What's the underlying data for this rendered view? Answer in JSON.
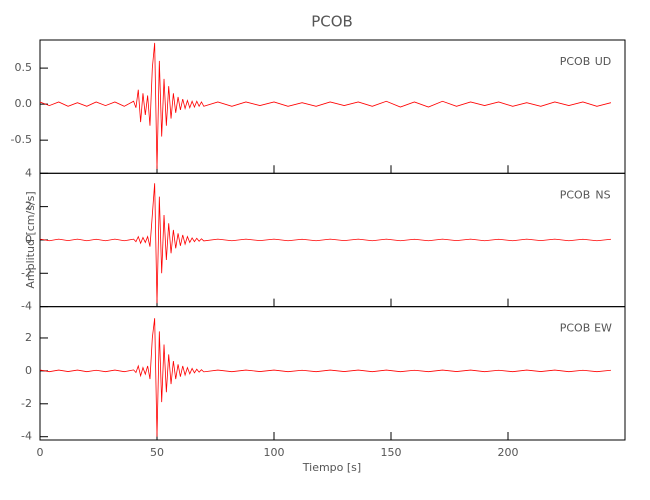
{
  "chart_data": {
    "type": "line",
    "title": "PCOB",
    "xlabel": "Tiempo [s]",
    "ylabel": "Amplitud [cm/s/s]",
    "color": "#ff0000",
    "xlim": [
      0,
      250
    ],
    "xticks": [
      0,
      50,
      100,
      150,
      200
    ],
    "x": [
      0,
      4,
      8,
      12,
      16,
      20,
      24,
      28,
      32,
      36,
      40,
      41,
      42,
      43,
      44,
      45,
      46,
      47,
      48,
      49,
      50,
      51,
      52,
      53,
      54,
      55,
      56,
      57,
      58,
      59,
      60,
      61,
      62,
      63,
      64,
      65,
      66,
      67,
      68,
      69,
      70,
      76,
      82,
      88,
      94,
      100,
      106,
      112,
      118,
      124,
      130,
      136,
      142,
      148,
      154,
      160,
      166,
      172,
      178,
      184,
      190,
      196,
      202,
      208,
      214,
      220,
      226,
      232,
      238,
      244
    ],
    "panels": [
      {
        "station": "PCOB",
        "component": "UD",
        "ylim": [
          -0.96,
          0.89
        ],
        "yticks": [
          -0.5,
          {
            "value": 0,
            "label": "0.0"
          },
          0.5
        ],
        "values": [
          0.03,
          -0.02,
          0.03,
          -0.03,
          0.02,
          -0.03,
          0.03,
          -0.02,
          0.03,
          -0.03,
          0.04,
          -0.05,
          0.2,
          -0.25,
          0.15,
          -0.15,
          0.12,
          -0.3,
          0.5,
          0.85,
          -0.9,
          0.6,
          -0.45,
          0.35,
          -0.3,
          0.25,
          -0.2,
          0.15,
          -0.12,
          0.1,
          -0.08,
          0.07,
          -0.06,
          0.05,
          -0.05,
          0.04,
          -0.04,
          0.04,
          -0.03,
          0.03,
          -0.03,
          0.03,
          -0.03,
          0.03,
          -0.02,
          0.03,
          -0.03,
          0.02,
          -0.03,
          0.03,
          -0.02,
          0.03,
          -0.03,
          0.04,
          -0.04,
          0.03,
          -0.04,
          0.04,
          -0.03,
          0.03,
          -0.02,
          0.03,
          -0.03,
          0.02,
          -0.03,
          0.03,
          -0.02,
          0.03,
          -0.03,
          0.02
        ]
      },
      {
        "station": "PCOB",
        "component": "NS",
        "ylim": [
          -4,
          4
        ],
        "yticks": [
          -4,
          -2,
          0,
          2,
          4
        ],
        "values": [
          0.05,
          -0.05,
          0.05,
          -0.04,
          0.05,
          -0.05,
          0.04,
          -0.05,
          0.05,
          -0.05,
          0.05,
          -0.1,
          0.2,
          -0.2,
          0.15,
          -0.15,
          0.2,
          -0.4,
          1.5,
          3.4,
          -3.8,
          2.6,
          -2.0,
          1.5,
          -1.2,
          1.0,
          -0.8,
          0.6,
          -0.5,
          0.4,
          -0.35,
          0.3,
          -0.25,
          0.2,
          -0.15,
          0.12,
          -0.1,
          0.1,
          -0.08,
          0.07,
          -0.06,
          0.05,
          -0.05,
          0.05,
          -0.04,
          0.05,
          -0.05,
          0.04,
          -0.05,
          0.05,
          -0.04,
          0.05,
          -0.05,
          0.05,
          -0.05,
          0.04,
          -0.05,
          0.05,
          -0.04,
          0.05,
          -0.05,
          0.04,
          -0.05,
          0.05,
          -0.04,
          0.05,
          -0.05,
          0.04,
          -0.05,
          0.04
        ]
      },
      {
        "station": "PCOB",
        "component": "EW",
        "ylim": [
          -4.2,
          3.9
        ],
        "yticks": [
          -4,
          -2,
          0,
          2
        ],
        "values": [
          0.05,
          -0.05,
          0.05,
          -0.04,
          0.05,
          -0.05,
          0.04,
          -0.05,
          0.05,
          -0.05,
          0.06,
          -0.1,
          0.3,
          -0.3,
          0.2,
          -0.2,
          0.3,
          -0.5,
          2.0,
          3.2,
          -4.0,
          2.4,
          -1.9,
          1.6,
          -1.3,
          1.0,
          -0.8,
          0.6,
          -0.5,
          0.4,
          -0.35,
          0.3,
          -0.25,
          0.2,
          -0.18,
          0.15,
          -0.12,
          0.1,
          -0.08,
          0.07,
          -0.06,
          0.05,
          -0.05,
          0.05,
          -0.04,
          0.05,
          -0.05,
          0.04,
          -0.05,
          0.05,
          -0.04,
          0.05,
          -0.05,
          0.05,
          -0.05,
          0.04,
          -0.05,
          0.05,
          -0.04,
          0.05,
          -0.05,
          0.04,
          -0.05,
          0.05,
          -0.04,
          0.05,
          -0.05,
          0.04,
          -0.05,
          0.04
        ]
      }
    ]
  }
}
